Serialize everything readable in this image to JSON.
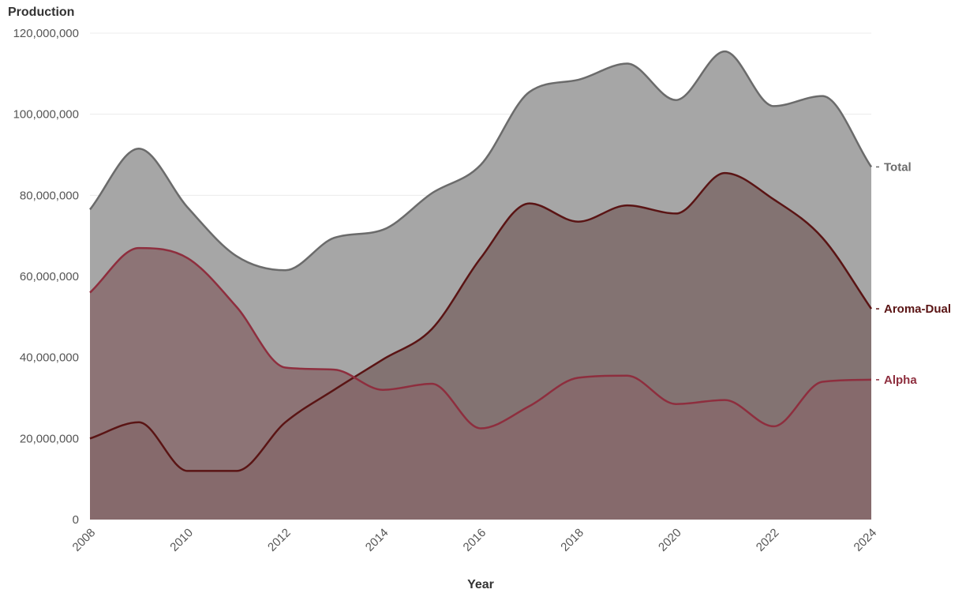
{
  "chart_data": {
    "type": "area",
    "ylabel": "Production",
    "xlabel": "Year",
    "ylim": [
      0,
      120000000
    ],
    "xlim": [
      2008,
      2024
    ],
    "y_ticks": [
      0,
      20000000,
      40000000,
      60000000,
      80000000,
      100000000,
      120000000
    ],
    "y_tick_labels": [
      "0",
      "20,000,000",
      "40,000,000",
      "60,000,000",
      "80,000,000",
      "100,000,000",
      "120,000,000"
    ],
    "x_ticks": [
      2008,
      2010,
      2012,
      2014,
      2016,
      2018,
      2020,
      2022,
      2024
    ],
    "x_tick_labels": [
      "2008",
      "2010",
      "2012",
      "2014",
      "2016",
      "2018",
      "2020",
      "2022",
      "2024"
    ],
    "grid": "horizontal",
    "legend": "direct labels at right end of each series",
    "x": [
      2008,
      2009,
      2010,
      2011,
      2012,
      2013,
      2014,
      2015,
      2016,
      2017,
      2018,
      2019,
      2020,
      2021,
      2022,
      2023,
      2024
    ],
    "series": [
      {
        "name": "Total",
        "color": "#6b6b6b",
        "fill": "#a6a6a6",
        "values": [
          76500000,
          91500000,
          77000000,
          65000000,
          61500000,
          69500000,
          71500000,
          80500000,
          87500000,
          105500000,
          108500000,
          112500000,
          103500000,
          115500000,
          102000000,
          104500000,
          87000000
        ]
      },
      {
        "name": "Aroma-Dual",
        "color": "#5a1414",
        "fill": "#7c6a68",
        "values": [
          20000000,
          24000000,
          12000000,
          12000000,
          24000000,
          32000000,
          39500000,
          47000000,
          64500000,
          78000000,
          73500000,
          77500000,
          75500000,
          85500000,
          79000000,
          69500000,
          52000000
        ]
      },
      {
        "name": "Alpha",
        "color": "#8e2e3e",
        "fill": "#87686a",
        "values": [
          56000000,
          67000000,
          64500000,
          52500000,
          37500000,
          37000000,
          32000000,
          33500000,
          22500000,
          28000000,
          35000000,
          35500000,
          28500000,
          29500000,
          23000000,
          34000000,
          34500000
        ]
      }
    ]
  }
}
